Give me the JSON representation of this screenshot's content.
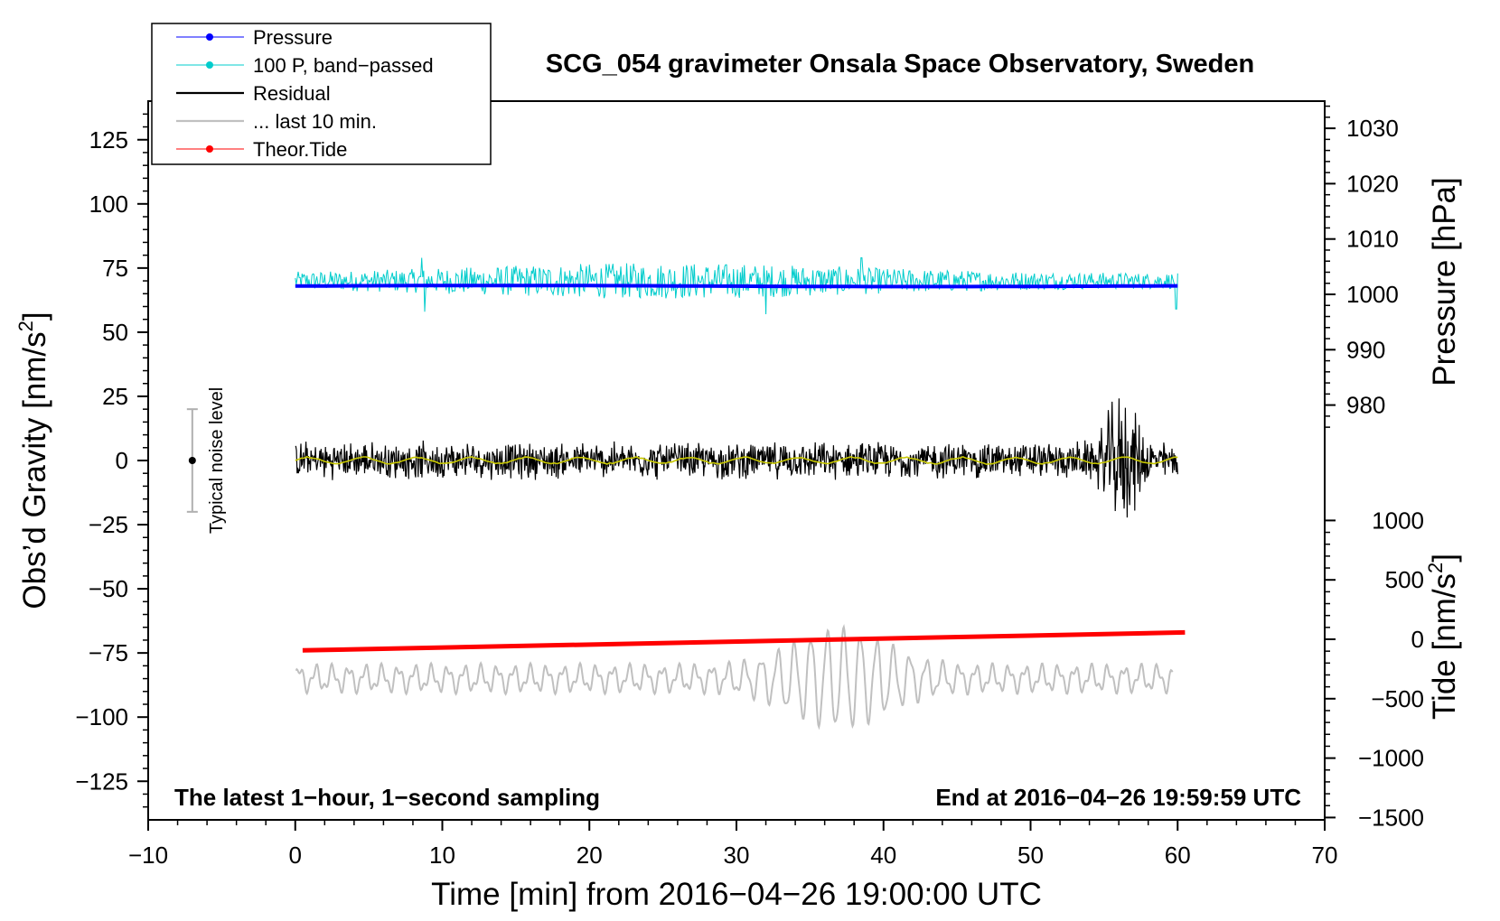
{
  "chart_data": {
    "type": "line",
    "title": "SCG_054 gravimeter Onsala Space Observatory, Sweden",
    "xlabel": "Time [min] from 2016−04−26 19:00:00 UTC",
    "ylabel_left_main": "Obs’d Gravity [nm/s",
    "ylabel_left_sup": "2",
    "ylabel_left_end": "]",
    "ylabel_right_pressure": "Pressure [hPa]",
    "ylabel_right_tide_main": "Tide [nm/s",
    "ylabel_right_tide_sup": "2",
    "ylabel_right_tide_end": "]",
    "xlim": [
      -10,
      70
    ],
    "ylim_left": [
      -140,
      140
    ],
    "ylim_pressure_ticks": [
      980,
      1030
    ],
    "ylim_tide_ticks": [
      -1500,
      1000
    ],
    "x_ticks": [
      "−10",
      "0",
      "10",
      "20",
      "30",
      "40",
      "50",
      "60",
      "70"
    ],
    "x_tick_values": [
      -10,
      0,
      10,
      20,
      30,
      40,
      50,
      60,
      70
    ],
    "y_left_ticks": [
      "125",
      "100",
      "75",
      "50",
      "25",
      "0",
      "−25",
      "−50",
      "−75",
      "−100",
      "−125"
    ],
    "y_left_tick_values": [
      125,
      100,
      75,
      50,
      25,
      0,
      -25,
      -50,
      -75,
      -100,
      -125
    ],
    "pressure_ticks": [
      "1030",
      "1020",
      "1010",
      "1000",
      "990",
      "980"
    ],
    "pressure_tick_values": [
      1030,
      1020,
      1010,
      1000,
      990,
      980
    ],
    "tide_ticks": [
      "1000",
      "500",
      "0",
      "−500",
      "−1000",
      "−1500"
    ],
    "tide_tick_values": [
      1000,
      500,
      0,
      -500,
      -1000,
      -1500
    ],
    "legend": {
      "placement": "top-left",
      "entries": [
        {
          "label": "Pressure",
          "color": "#0000ff",
          "marker": true
        },
        {
          "label": "100 P, band−passed",
          "color": "#00cccc",
          "marker": true
        },
        {
          "label": "Residual",
          "color": "#000000",
          "marker": false
        },
        {
          "label": "... last 10 min.",
          "color": "#c0c0c0",
          "marker": false
        },
        {
          "label": "Theor.Tide",
          "color": "#ff0000",
          "marker": true
        }
      ]
    },
    "series": [
      {
        "name": "Pressure",
        "color": "#0000ff",
        "x_range": [
          0,
          60
        ],
        "value_hPa": 1001.5
      },
      {
        "name": "100 P, band−passed",
        "color": "#00cccc",
        "x_range": [
          0,
          60
        ]
      },
      {
        "name": "Residual",
        "color": "#000000",
        "x_range": [
          0,
          60
        ],
        "center_nm_s2": 0
      },
      {
        "name": "... last 10 min.",
        "color": "#c0c0c0",
        "x_range": [
          0,
          60
        ]
      },
      {
        "name": "Theor.Tide",
        "color": "#ff0000",
        "x_start": 0.5,
        "x_end": 60.5,
        "y_start_nm_s2": -74,
        "y_end_nm_s2": -67
      }
    ],
    "noise_bar": {
      "label": "Typical noise level",
      "x": -7,
      "center": 0,
      "low": -20,
      "high": 20
    },
    "annotations": {
      "left": "The latest 1−hour, 1−second sampling",
      "right": "End at 2016−04−26 19:59:59 UTC"
    },
    "grid": false
  }
}
